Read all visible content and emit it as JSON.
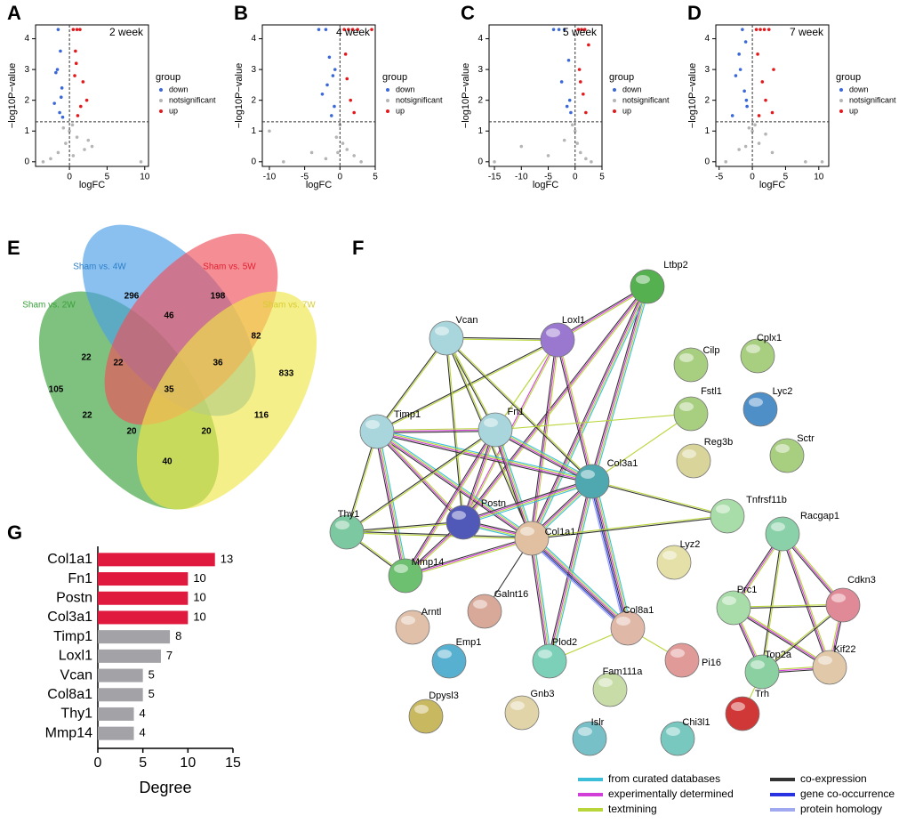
{
  "panel_labels": [
    "A",
    "B",
    "C",
    "D",
    "E",
    "F",
    "G"
  ],
  "chart_data": [
    {
      "type": "scatter",
      "label": "2 week",
      "xlabel": "logFC",
      "ylabel": "−log10P−value",
      "legend_title": "group",
      "xlim": [
        -4.5,
        10.5
      ],
      "xticks": [
        0,
        5,
        10
      ],
      "ylim": [
        -0.15,
        4.45
      ],
      "yticks": [
        0,
        1,
        2,
        3,
        4
      ],
      "hline": 1.3,
      "vline": 0,
      "series": [
        {
          "name": "down",
          "color": "#3a68d8",
          "x": [
            -1.5,
            -1.2,
            -1.8,
            -1.0,
            -2.0,
            -1.3,
            -0.9,
            -1.6,
            -1.1
          ],
          "y": [
            4.3,
            3.6,
            2.9,
            2.4,
            1.9,
            1.6,
            1.45,
            3.0,
            2.1
          ]
        },
        {
          "name": "notsignificant",
          "color": "#b5b5b5",
          "x": [
            -3.5,
            -1.5,
            -0.5,
            0,
            0.4,
            1,
            2,
            3,
            9.5,
            -0.8,
            0.5,
            2.5,
            -2.5
          ],
          "y": [
            0,
            0.3,
            0.6,
            1.0,
            1.2,
            0.8,
            0.4,
            0.5,
            0,
            1.1,
            0.2,
            0.7,
            0.1
          ]
        },
        {
          "name": "up",
          "color": "#e3191c",
          "x": [
            0.5,
            1.0,
            1.4,
            0.8,
            1.8,
            2.3,
            1.1,
            0.7,
            1.5,
            0.9
          ],
          "y": [
            4.3,
            4.3,
            4.3,
            3.6,
            2.6,
            2.0,
            1.5,
            2.8,
            1.8,
            3.2
          ]
        }
      ]
    },
    {
      "type": "scatter",
      "label": "4 week",
      "xlabel": "logFC",
      "ylabel": "−log10P−value",
      "legend_title": "group",
      "xlim": [
        -11,
        5
      ],
      "xticks": [
        -10,
        -5,
        0,
        5
      ],
      "ylim": [
        -0.15,
        4.45
      ],
      "yticks": [
        0,
        1,
        2,
        3,
        4
      ],
      "hline": 1.3,
      "vline": 0,
      "series": [
        {
          "name": "down",
          "color": "#3a68d8",
          "x": [
            -3,
            -2,
            -1.5,
            -1.0,
            -2.5,
            -0.8,
            -1.2,
            -0.7,
            -1.8
          ],
          "y": [
            4.3,
            4.3,
            3.4,
            2.8,
            2.2,
            1.8,
            1.5,
            3.0,
            2.5
          ]
        },
        {
          "name": "notsignificant",
          "color": "#b5b5b5",
          "x": [
            -10,
            -8,
            -4,
            -2,
            -0.5,
            0,
            0.4,
            1,
            2,
            -0.3,
            3
          ],
          "y": [
            1.0,
            0,
            0.3,
            0.1,
            0.8,
            1.2,
            0.6,
            0.4,
            0.2,
            0.3,
            0
          ]
        },
        {
          "name": "up",
          "color": "#e3191c",
          "x": [
            0.6,
            1.2,
            1.8,
            2.5,
            4.5,
            0.8,
            1.0,
            1.5,
            2.0
          ],
          "y": [
            4.3,
            4.3,
            4.3,
            4.3,
            4.3,
            3.5,
            2.7,
            2.0,
            1.6
          ]
        }
      ]
    },
    {
      "type": "scatter",
      "label": "5 week",
      "xlabel": "logFC",
      "ylabel": "−log10P−value",
      "legend_title": "group",
      "xlim": [
        -16,
        5
      ],
      "xticks": [
        -15,
        -10,
        -5,
        0,
        5
      ],
      "ylim": [
        -0.15,
        4.45
      ],
      "yticks": [
        0,
        1,
        2,
        3,
        4
      ],
      "hline": 1.3,
      "vline": 0,
      "series": [
        {
          "name": "down",
          "color": "#3a68d8",
          "x": [
            -4,
            -3,
            -2,
            -1.2,
            -2.5,
            -1.0,
            -0.8,
            -1.5
          ],
          "y": [
            4.3,
            4.3,
            4.3,
            3.3,
            2.6,
            2.0,
            1.6,
            1.8
          ]
        },
        {
          "name": "notsignificant",
          "color": "#b5b5b5",
          "x": [
            -15,
            -10,
            -5,
            -2,
            -0.5,
            0,
            0.4,
            1,
            2,
            3
          ],
          "y": [
            0,
            0.5,
            0.2,
            0.7,
            1.2,
            1.0,
            0.6,
            0.3,
            0.1,
            0
          ]
        },
        {
          "name": "up",
          "color": "#e3191c",
          "x": [
            0.6,
            1.2,
            1.8,
            2.5,
            0.8,
            1.5,
            2.0,
            1.0
          ],
          "y": [
            4.3,
            4.3,
            4.3,
            3.8,
            3.0,
            2.2,
            1.6,
            2.6
          ]
        }
      ]
    },
    {
      "type": "scatter",
      "label": "7 week",
      "xlabel": "logFC",
      "ylabel": "−log10P−value",
      "legend_title": "group",
      "xlim": [
        -5.5,
        11.5
      ],
      "xticks": [
        -5,
        0,
        5,
        10
      ],
      "ylim": [
        -0.15,
        4.45
      ],
      "yticks": [
        0,
        1,
        2,
        3,
        4
      ],
      "hline": 1.3,
      "vline": 0,
      "series": [
        {
          "name": "down",
          "color": "#3a68d8",
          "x": [
            -1.5,
            -1.0,
            -2.0,
            -2.5,
            -1.2,
            -0.8,
            -3.0,
            -1.8,
            -0.9
          ],
          "y": [
            4.3,
            3.9,
            3.5,
            2.8,
            2.3,
            1.8,
            1.5,
            3.0,
            2.0
          ]
        },
        {
          "name": "notsignificant",
          "color": "#b5b5b5",
          "x": [
            -4,
            -2,
            -0.5,
            0,
            0.4,
            1,
            2,
            3,
            8,
            10.5,
            -1
          ],
          "y": [
            0,
            0.4,
            1.1,
            1.0,
            1.2,
            0.6,
            0.9,
            0.3,
            0,
            0,
            0.5
          ]
        },
        {
          "name": "up",
          "color": "#e3191c",
          "x": [
            0.6,
            1.2,
            1.8,
            2.5,
            3.2,
            0.8,
            1.5,
            2.0,
            3.0,
            1.0
          ],
          "y": [
            4.3,
            4.3,
            4.3,
            4.3,
            3.0,
            3.5,
            2.6,
            2.0,
            1.6,
            1.5
          ]
        }
      ]
    },
    {
      "type": "barh",
      "xlabel": "Degree",
      "xlim": [
        0,
        15
      ],
      "xticks": [
        0,
        5,
        10,
        15
      ],
      "categories": [
        "Col1a1",
        "Fn1",
        "Postn",
        "Col3a1",
        "Timp1",
        "Loxl1",
        "Vcan",
        "Col8a1",
        "Thy1",
        "Mmp14"
      ],
      "values": [
        13,
        10,
        10,
        10,
        8,
        7,
        5,
        5,
        4,
        4
      ],
      "colors": [
        "#e0193f",
        "#e0193f",
        "#e0193f",
        "#e0193f",
        "#a3a3a7",
        "#a3a3a7",
        "#a3a3a7",
        "#a3a3a7",
        "#a3a3a7",
        "#a3a3a7"
      ]
    }
  ],
  "venn": {
    "sets": [
      {
        "name": "Sham vs. 2W",
        "color": "#3aa13a"
      },
      {
        "name": "Sham vs. 4W",
        "color": "#4a9ee8"
      },
      {
        "name": "Sham vs. 5W",
        "color": "#f0505a"
      },
      {
        "name": "Sham vs. 7W",
        "color": "#efe64a"
      }
    ],
    "regions": [
      "296",
      "198",
      "105",
      "833",
      "22",
      "46",
      "82",
      "22",
      "36",
      "116",
      "35",
      "22",
      "20",
      "20",
      "40"
    ]
  },
  "network": {
    "nodes": [
      {
        "label": "Ltbp2",
        "color": "#55b050"
      },
      {
        "label": "Loxl1",
        "color": "#9a78d0"
      },
      {
        "label": "Vcan",
        "color": "#a9d6dc"
      },
      {
        "label": "Cilp",
        "color": "#a8cf80"
      },
      {
        "label": "Cplx1",
        "color": "#a8cf80"
      },
      {
        "label": "Fstl1",
        "color": "#a8cf80"
      },
      {
        "label": "Lyc2",
        "color": "#4f8fc8"
      },
      {
        "label": "Timp1",
        "color": "#a9d6dc"
      },
      {
        "label": "Fn1",
        "color": "#a9d6dc"
      },
      {
        "label": "Reg3b",
        "color": "#d9d49a"
      },
      {
        "label": "Sctr",
        "color": "#a8cf80"
      },
      {
        "label": "Col3a1",
        "color": "#4fa8b0"
      },
      {
        "label": "Tnfrsf11b",
        "color": "#a8dca8"
      },
      {
        "label": "Thy1",
        "color": "#7cc8a0"
      },
      {
        "label": "Postn",
        "color": "#5058b8"
      },
      {
        "label": "Col1a1",
        "color": "#e0c0a0"
      },
      {
        "label": "Lyz2",
        "color": "#e4e0a8"
      },
      {
        "label": "Racgap1",
        "color": "#8ad0a8"
      },
      {
        "label": "Mmp14",
        "color": "#6cc070"
      },
      {
        "label": "Cdkn3",
        "color": "#e08a98"
      },
      {
        "label": "Prc1",
        "color": "#a8dca8"
      },
      {
        "label": "Galnt16",
        "color": "#d8a898"
      },
      {
        "label": "Arntl",
        "color": "#e0c0a8"
      },
      {
        "label": "Col8a1",
        "color": "#e0b8a8"
      },
      {
        "label": "Emp1",
        "color": "#58b0d0"
      },
      {
        "label": "Plod2",
        "color": "#7cd0b8"
      },
      {
        "label": "Pi16",
        "color": "#e09a98"
      },
      {
        "label": "Kif22",
        "color": "#e0c8a8"
      },
      {
        "label": "Top2a",
        "color": "#8ad0a0"
      },
      {
        "label": "Fam111a",
        "color": "#c8dca8"
      },
      {
        "label": "Gnb3",
        "color": "#e0d4a8"
      },
      {
        "label": "Dpysl3",
        "color": "#c8b860"
      },
      {
        "label": "Trh",
        "color": "#d03838"
      },
      {
        "label": "Islr",
        "color": "#78c0c8"
      },
      {
        "label": "Chi3l1",
        "color": "#78c8c0"
      }
    ],
    "legend": [
      {
        "label": "from curated databases",
        "color": "#3bbfd8"
      },
      {
        "label": "experimentally determined",
        "color": "#d23fd8"
      },
      {
        "label": "textmining",
        "color": "#b8d53a"
      },
      {
        "label": "co-expression",
        "color": "#333333"
      },
      {
        "label": "gene co-occurrence",
        "color": "#2832e0"
      },
      {
        "label": "protein homology",
        "color": "#a0a8f0"
      }
    ]
  }
}
